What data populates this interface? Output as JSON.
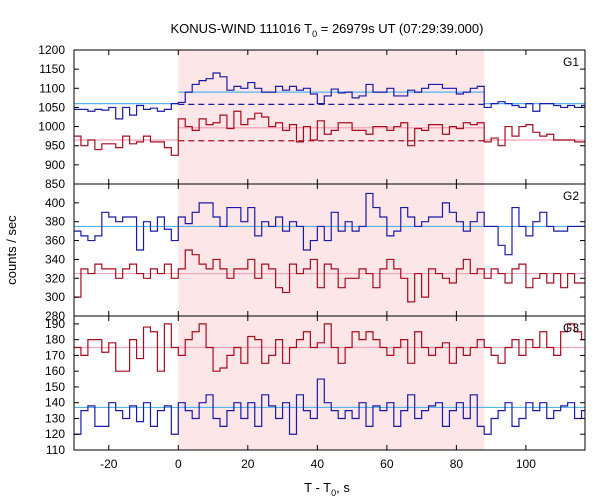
{
  "title": {
    "prefix": "KONUS-WIND 111016 T",
    "sub": "0",
    "suffix": " = 26979s UT (07:29:39.000)"
  },
  "colors": {
    "background": "#ffffff",
    "shade": "#fde6e8",
    "blue": "#1a1aa8",
    "red": "#a80b1e",
    "light_blue": "#55b4f0",
    "pink": "#f4a3b8"
  },
  "chart_data": {
    "type": "step",
    "xlabel": "T - T",
    "xlabel_sub": "0",
    "xlabel_suffix": ", s",
    "ylabel": "counts / sec",
    "xlim": [
      -30,
      117
    ],
    "xticks": [
      -20,
      0,
      20,
      40,
      60,
      80,
      100
    ],
    "highlight_interval": [
      0,
      88
    ],
    "bin_width": 2,
    "x_start": -30,
    "panels": [
      {
        "label": "G1",
        "ylim": [
          850,
          1200
        ],
        "yticks": [
          850,
          900,
          950,
          1000,
          1050,
          1100,
          1150,
          1200
        ],
        "series": [
          {
            "color": "blue",
            "values": [
              1045,
              1045,
              1040,
              1045,
              1043,
              1050,
              1020,
              1050,
              1030,
              1055,
              1045,
              1048,
              1040,
              1045,
              1060,
              1063,
              1090,
              1110,
              1120,
              1125,
              1140,
              1130,
              1095,
              1105,
              1100,
              1115,
              1100,
              1090,
              1090,
              1105,
              1095,
              1105,
              1095,
              1100,
              1085,
              1060,
              1080,
              1098,
              1088,
              1090,
              1075,
              1080,
              1110,
              1090,
              1090,
              1100,
              1080,
              1080,
              1095,
              1090,
              1100,
              1110,
              1110,
              1100,
              1100,
              1085,
              1090,
              1100,
              1105,
              1050,
              1060,
              1065,
              1060,
              1055,
              1050,
              1060,
              1040,
              1060,
              1060,
              1055,
              1050,
              1055,
              1050,
              1055
            ]
          },
          {
            "color": "red",
            "values": [
              975,
              950,
              965,
              940,
              955,
              955,
              945,
              975,
              955,
              960,
              975,
              960,
              960,
              945,
              925,
              1020,
              1000,
              990,
              1020,
              1005,
              1010,
              1030,
              995,
              1040,
              1005,
              1020,
              1035,
              1025,
              1000,
              1010,
              990,
              1005,
              960,
              1000,
              965,
              1015,
              980,
              990,
              1010,
              1010,
              990,
              990,
              980,
              1000,
              1000,
              990,
              1000,
              1010,
              950,
              995,
              990,
              1005,
              1005,
              980,
              1000,
              995,
              1010,
              1005,
              1010,
              960,
              970,
              950,
              1000,
              975,
              1000,
              1005,
              985,
              975,
              980,
              965,
              965,
              965,
              960,
              960
            ]
          }
        ],
        "mean_lines": [
          {
            "color": "light_blue",
            "y": 1060,
            "style": "solid",
            "x_range": [
              -30,
              0
            ]
          },
          {
            "color": "light_blue",
            "y": 1090,
            "style": "solid",
            "x_range": [
              0,
              88
            ]
          },
          {
            "color": "light_blue",
            "y": 1060,
            "style": "solid",
            "x_range": [
              88,
              117
            ]
          },
          {
            "color": "blue",
            "y": 1058,
            "style": "dashed",
            "x_range": [
              0,
              88
            ]
          },
          {
            "color": "pink",
            "y": 965,
            "style": "solid",
            "x_range": [
              -30,
              0
            ]
          },
          {
            "color": "pink",
            "y": 997,
            "style": "solid",
            "x_range": [
              0,
              88
            ]
          },
          {
            "color": "pink",
            "y": 965,
            "style": "solid",
            "x_range": [
              88,
              117
            ]
          },
          {
            "color": "red",
            "y": 963,
            "style": "dashed",
            "x_range": [
              0,
              88
            ]
          }
        ]
      },
      {
        "label": "G2",
        "ylim": [
          280,
          420
        ],
        "yticks": [
          280,
          300,
          320,
          340,
          360,
          380,
          400
        ],
        "series": [
          {
            "color": "blue",
            "values": [
              370,
              365,
              360,
              365,
              390,
              385,
              380,
              385,
              385,
              350,
              380,
              370,
              385,
              372,
              360,
              385,
              378,
              390,
              400,
              400,
              385,
              375,
              395,
              395,
              380,
              395,
              365,
              380,
              375,
              385,
              370,
              380,
              375,
              350,
              360,
              375,
              360,
              390,
              370,
              380,
              370,
              375,
              410,
              395,
              385,
              365,
              370,
              395,
              385,
              375,
              380,
              385,
              385,
              400,
              390,
              380,
              370,
              380,
              390,
              375,
              375,
              355,
              345,
              395,
              375,
              365,
              380,
              390,
              375,
              370,
              370,
              375,
              375,
              375
            ]
          },
          {
            "color": "red",
            "values": [
              300,
              330,
              325,
              335,
              330,
              330,
              320,
              330,
              335,
              325,
              320,
              330,
              325,
              335,
              320,
              330,
              350,
              345,
              335,
              330,
              340,
              330,
              320,
              330,
              330,
              340,
              320,
              335,
              330,
              310,
              305,
              335,
              325,
              330,
              340,
              310,
              335,
              330,
              310,
              320,
              320,
              330,
              325,
              310,
              330,
              340,
              330,
              320,
              295,
              325,
              300,
              330,
              325,
              320,
              315,
              330,
              340,
              325,
              330,
              320,
              330,
              325,
              315,
              330,
              335,
              310,
              320,
              325,
              315,
              325,
              310,
              325,
              315,
              315
            ]
          }
        ],
        "mean_lines": [
          {
            "color": "light_blue",
            "y": 375,
            "style": "solid",
            "x_range": [
              -30,
              117
            ]
          },
          {
            "color": "pink",
            "y": 325,
            "style": "solid",
            "x_range": [
              -30,
              117
            ]
          }
        ]
      },
      {
        "label": "G3",
        "ylim": [
          110,
          195
        ],
        "yticks": [
          110,
          120,
          130,
          140,
          150,
          160,
          170,
          180,
          190
        ],
        "series": [
          {
            "color": "red",
            "values": [
              175,
              170,
              180,
              180,
              172,
              178,
              160,
              160,
              180,
              168,
              188,
              185,
              160,
              190,
              175,
              170,
              180,
              185,
              190,
              175,
              160,
              162,
              170,
              175,
              165,
              182,
              180,
              165,
              170,
              180,
              165,
              175,
              180,
              185,
              175,
              178,
              190,
              175,
              165,
              175,
              185,
              180,
              185,
              180,
              175,
              170,
              175,
              180,
              165,
              185,
              175,
              170,
              175,
              178,
              165,
              175,
              170,
              175,
              180,
              175,
              170,
              165,
              175,
              180,
              170,
              180,
              175,
              185,
              175,
              170,
              185,
              190,
              185,
              180
            ]
          },
          {
            "color": "blue",
            "values": [
              120,
              135,
              138,
              125,
              125,
              140,
              135,
              130,
              138,
              128,
              140,
              125,
              135,
              138,
              120,
              140,
              135,
              130,
              140,
              145,
              130,
              125,
              135,
              140,
              130,
              140,
              125,
              145,
              138,
              130,
              140,
              120,
              145,
              135,
              130,
              155,
              140,
              135,
              130,
              135,
              130,
              140,
              125,
              138,
              135,
              140,
              125,
              135,
              145,
              130,
              135,
              138,
              140,
              125,
              135,
              140,
              130,
              145,
              125,
              120,
              130,
              135,
              140,
              125,
              130,
              140,
              135,
              140,
              130,
              135,
              138,
              140,
              130,
              135
            ]
          }
        ],
        "mean_lines": [
          {
            "color": "pink",
            "y": 175,
            "style": "solid",
            "x_range": [
              -30,
              117
            ]
          },
          {
            "color": "light_blue",
            "y": 137,
            "style": "solid",
            "x_range": [
              -30,
              117
            ]
          }
        ]
      }
    ]
  }
}
